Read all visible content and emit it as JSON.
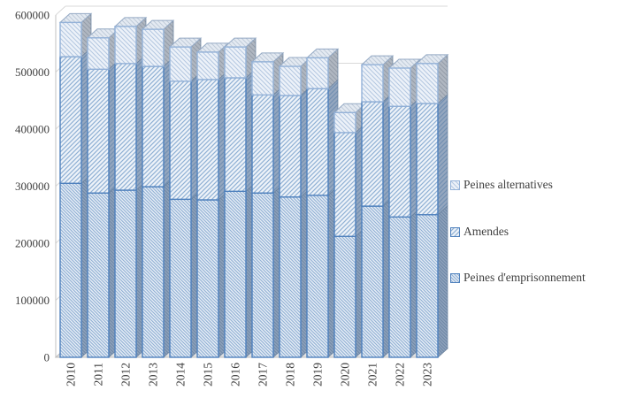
{
  "chart_data": {
    "type": "bar",
    "subtype": "stacked-column-3d-hatched",
    "title": "",
    "xlabel": "",
    "ylabel": "",
    "categories": [
      "2010",
      "2011",
      "2012",
      "2013",
      "2014",
      "2015",
      "2016",
      "2017",
      "2018",
      "2019",
      "2020",
      "2021",
      "2022",
      "2023"
    ],
    "series": [
      {
        "name": "Peines d'emprisonnement",
        "values": [
          305000,
          288000,
          293000,
          299000,
          277000,
          276000,
          291000,
          288000,
          281000,
          284000,
          212000,
          265000,
          246000,
          250000
        ]
      },
      {
        "name": "Amendes",
        "values": [
          222000,
          217000,
          222000,
          211000,
          207000,
          211000,
          199000,
          172000,
          178000,
          187000,
          182000,
          183000,
          194000,
          195000
        ]
      },
      {
        "name": "Peines alternatives",
        "values": [
          60000,
          55000,
          65000,
          65000,
          60000,
          48000,
          54000,
          58000,
          51000,
          54000,
          35000,
          65000,
          67000,
          70000
        ]
      }
    ],
    "ylim": [
      0,
      600000
    ],
    "ytick_interval": 100000,
    "yticks": [
      "0",
      "100000",
      "200000",
      "300000",
      "400000",
      "500000",
      "600000"
    ],
    "grid": true,
    "legend_position": "right",
    "colors": {
      "accent_border": "#4f81bd",
      "light_border": "#94b2d8",
      "grid": "#d9d9d9",
      "axis": "#c0c0c0",
      "floor_fill": "#e3e3e3",
      "floor_edge": "#bdbdbd",
      "text": "#404040"
    }
  },
  "legend": {
    "items": [
      {
        "label": "Peines alternatives"
      },
      {
        "label": "Amendes"
      },
      {
        "label": "Peines d'emprisonnement"
      }
    ]
  }
}
